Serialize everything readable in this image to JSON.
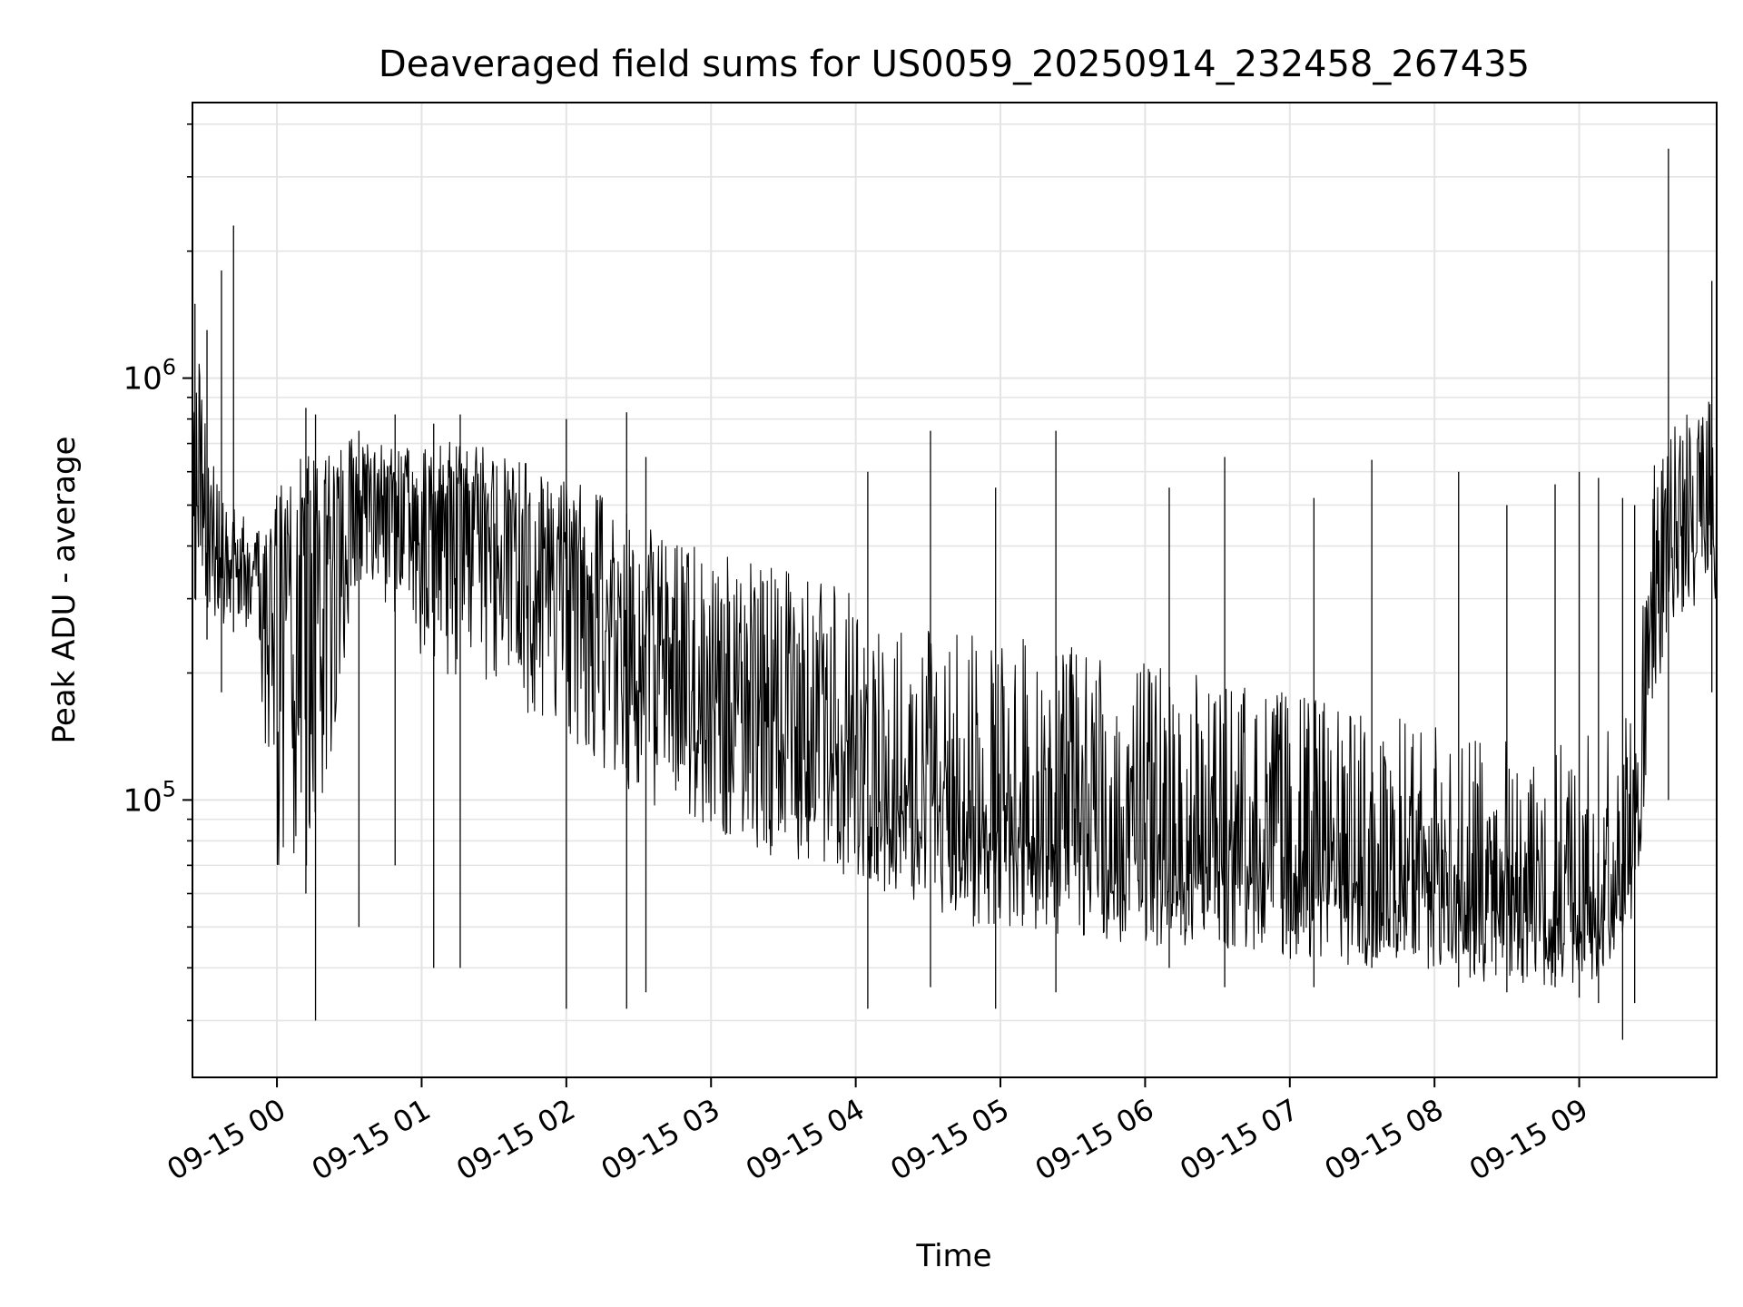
{
  "chart_data": {
    "type": "line",
    "title": "Deaveraged field sums for US0059_20250914_232458_267435",
    "xlabel": "Time",
    "ylabel": "Peak ADU - average",
    "yscale": "log",
    "ylim": [
      22000,
      4500000
    ],
    "xlim": [
      "2025-09-14 23:24:58",
      "2025-09-15 09:57:00"
    ],
    "grid": true,
    "line_color": "#000000",
    "xticks": [
      {
        "time": "2025-09-15 00:00",
        "label": "09-15 00"
      },
      {
        "time": "2025-09-15 01:00",
        "label": "09-15 01"
      },
      {
        "time": "2025-09-15 02:00",
        "label": "09-15 02"
      },
      {
        "time": "2025-09-15 03:00",
        "label": "09-15 03"
      },
      {
        "time": "2025-09-15 04:00",
        "label": "09-15 04"
      },
      {
        "time": "2025-09-15 05:00",
        "label": "09-15 05"
      },
      {
        "time": "2025-09-15 06:00",
        "label": "09-15 06"
      },
      {
        "time": "2025-09-15 07:00",
        "label": "09-15 07"
      },
      {
        "time": "2025-09-15 08:00",
        "label": "09-15 08"
      },
      {
        "time": "2025-09-15 09:00",
        "label": "09-15 09"
      }
    ],
    "yticks": [
      {
        "value": 100000,
        "base": "10",
        "exp": "5"
      },
      {
        "value": 1000000,
        "base": "10",
        "exp": "6"
      }
    ],
    "series": [
      {
        "style": "envelope",
        "x": [
          "2025-09-14 23:25",
          "2025-09-14 23:30",
          "2025-09-14 23:35",
          "2025-09-14 23:40",
          "2025-09-14 23:45",
          "2025-09-14 23:50",
          "2025-09-14 23:55",
          "2025-09-15 00:00",
          "2025-09-15 00:10",
          "2025-09-15 00:20",
          "2025-09-15 00:30",
          "2025-09-15 00:40",
          "2025-09-15 00:50",
          "2025-09-15 01:00",
          "2025-09-15 01:10",
          "2025-09-15 01:20",
          "2025-09-15 01:30",
          "2025-09-15 01:40",
          "2025-09-15 01:50",
          "2025-09-15 02:00",
          "2025-09-15 02:10",
          "2025-09-15 02:20",
          "2025-09-15 02:30",
          "2025-09-15 02:40",
          "2025-09-15 02:50",
          "2025-09-15 03:00",
          "2025-09-15 03:10",
          "2025-09-15 03:20",
          "2025-09-15 03:30",
          "2025-09-15 03:40",
          "2025-09-15 03:50",
          "2025-09-15 04:00",
          "2025-09-15 04:10",
          "2025-09-15 04:20",
          "2025-09-15 04:30",
          "2025-09-15 04:40",
          "2025-09-15 04:50",
          "2025-09-15 05:00",
          "2025-09-15 05:10",
          "2025-09-15 05:20",
          "2025-09-15 05:30",
          "2025-09-15 05:40",
          "2025-09-15 05:50",
          "2025-09-15 06:00",
          "2025-09-15 06:10",
          "2025-09-15 06:20",
          "2025-09-15 06:30",
          "2025-09-15 06:40",
          "2025-09-15 06:50",
          "2025-09-15 07:00",
          "2025-09-15 07:10",
          "2025-09-15 07:20",
          "2025-09-15 07:30",
          "2025-09-15 07:40",
          "2025-09-15 07:50",
          "2025-09-15 08:00",
          "2025-09-15 08:10",
          "2025-09-15 08:20",
          "2025-09-15 08:30",
          "2025-09-15 08:40",
          "2025-09-15 08:50",
          "2025-09-15 09:00",
          "2025-09-15 09:10",
          "2025-09-15 09:20",
          "2025-09-15 09:25",
          "2025-09-15 09:30",
          "2025-09-15 09:40",
          "2025-09-15 09:50",
          "2025-09-15 09:57"
        ],
        "low": [
          300000,
          280000,
          260000,
          250000,
          250000,
          240000,
          140000,
          70000,
          60000,
          100000,
          250000,
          300000,
          250000,
          220000,
          200000,
          180000,
          170000,
          160000,
          150000,
          140000,
          130000,
          110000,
          100000,
          95000,
          90000,
          85000,
          80000,
          75000,
          72000,
          70000,
          68000,
          65000,
          60000,
          58000,
          55000,
          52000,
          50000,
          50000,
          50000,
          48000,
          47000,
          47000,
          46000,
          45000,
          45000,
          45000,
          44000,
          44000,
          43000,
          42000,
          42000,
          41000,
          40000,
          40000,
          39000,
          38000,
          38000,
          37000,
          37000,
          36000,
          36000,
          37000,
          38000,
          45000,
          70000,
          150000,
          250000,
          280000,
          300000
        ],
        "high": [
          1200000,
          1000000,
          700000,
          500000,
          480000,
          450000,
          500000,
          550000,
          650000,
          700000,
          720000,
          700000,
          680000,
          700000,
          720000,
          700000,
          680000,
          650000,
          600000,
          580000,
          550000,
          500000,
          480000,
          450000,
          420000,
          400000,
          380000,
          360000,
          350000,
          340000,
          330000,
          320000,
          300000,
          290000,
          280000,
          270000,
          260000,
          250000,
          240000,
          235000,
          230000,
          225000,
          220000,
          215000,
          210000,
          200000,
          195000,
          190000,
          185000,
          180000,
          175000,
          170000,
          165000,
          160000,
          155000,
          150000,
          148000,
          145000,
          140000,
          140000,
          140000,
          145000,
          150000,
          160000,
          250000,
          600000,
          800000,
          900000,
          900000
        ],
        "level": [
          500000,
          450000,
          400000,
          380000,
          370000,
          350000,
          300000,
          350000,
          450000,
          520000,
          550000,
          550000,
          520000,
          500000,
          500000,
          480000,
          450000,
          420000,
          380000,
          350000,
          300000,
          260000,
          230000,
          210000,
          190000,
          180000,
          170000,
          160000,
          150000,
          140000,
          130000,
          120000,
          110000,
          105000,
          100000,
          95000,
          90000,
          88000,
          85000,
          82000,
          80000,
          78000,
          76000,
          75000,
          74000,
          73000,
          72000,
          71000,
          70000,
          68000,
          67000,
          66000,
          64000,
          62000,
          60000,
          58000,
          57000,
          56000,
          55000,
          54000,
          53000,
          54000,
          56000,
          60000,
          100000,
          300000,
          450000,
          500000,
          500000
        ]
      },
      {
        "style": "spikes",
        "x": [
          "2025-09-14 23:26",
          "2025-09-14 23:31",
          "2025-09-14 23:37",
          "2025-09-14 23:42",
          "2025-09-15 00:12",
          "2025-09-15 00:16",
          "2025-09-15 00:34",
          "2025-09-15 00:49",
          "2025-09-15 01:05",
          "2025-09-15 01:16",
          "2025-09-15 02:00",
          "2025-09-15 02:25",
          "2025-09-15 02:33",
          "2025-09-15 04:05",
          "2025-09-15 04:31",
          "2025-09-15 04:58",
          "2025-09-15 05:23",
          "2025-09-15 06:10",
          "2025-09-15 06:33",
          "2025-09-15 07:10",
          "2025-09-15 07:34",
          "2025-09-15 08:10",
          "2025-09-15 08:30",
          "2025-09-15 08:50",
          "2025-09-15 09:00",
          "2025-09-15 09:08",
          "2025-09-15 09:18",
          "2025-09-15 09:23",
          "2025-09-15 09:37",
          "2025-09-15 09:55"
        ],
        "y": [
          1500000,
          1300000,
          1800000,
          2300000,
          850000,
          820000,
          750000,
          820000,
          780000,
          820000,
          800000,
          830000,
          650000,
          600000,
          750000,
          550000,
          750000,
          550000,
          650000,
          520000,
          640000,
          600000,
          500000,
          560000,
          600000,
          580000,
          520000,
          500000,
          3500000,
          1700000
        ],
        "low_y": [
          300000,
          240000,
          180000,
          250000,
          60000,
          30000,
          50000,
          70000,
          40000,
          40000,
          32000,
          32000,
          35000,
          32000,
          36000,
          32000,
          35000,
          40000,
          36000,
          36000,
          40000,
          36000,
          35000,
          36000,
          34000,
          33000,
          27000,
          33000,
          100000,
          180000
        ]
      }
    ]
  }
}
